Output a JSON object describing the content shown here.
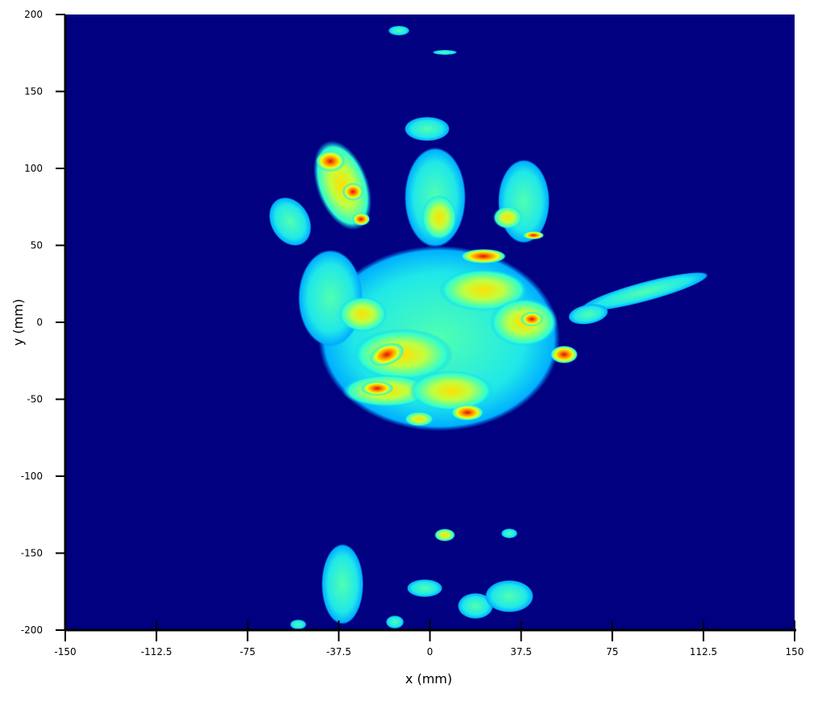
{
  "chart_data": {
    "type": "heatmap",
    "xlabel": "x (mm)",
    "ylabel": "y (mm)",
    "xlim": [
      -150,
      150
    ],
    "ylim": [
      -200,
      200
    ],
    "xticks": [
      -150,
      -112.5,
      -75,
      -37.5,
      0,
      37.5,
      75,
      112.5,
      150
    ],
    "yticks": [
      -200,
      -150,
      -100,
      -50,
      0,
      50,
      100,
      150,
      200
    ],
    "color": "#000080"
  }
}
